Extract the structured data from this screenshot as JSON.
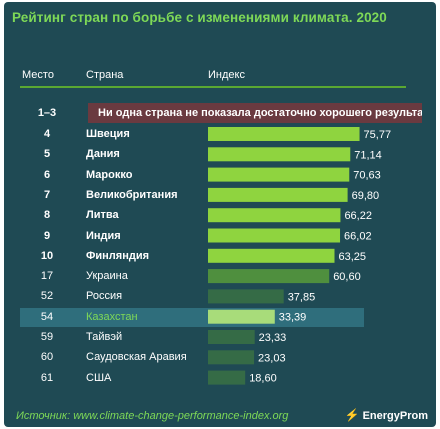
{
  "title": "Рейтинг стран по борьбе с изменениями климата. 2020",
  "headers": {
    "rank": "Место",
    "country": "Страна",
    "index": "Индекс"
  },
  "colors": {
    "background": "#1f4a54",
    "accent": "#7ed957",
    "bar_top": "#8fd43f",
    "bar_mid": "#4f8f3e",
    "bar_low": "#356b46",
    "bar_highlight": "#a8dc7a",
    "notice_bg": "#6a3a40",
    "highlight_row": "#2f6e7c"
  },
  "notice": {
    "rank": "1–3",
    "text": "Ни одна страна не показала  достаточно хорошего  результата"
  },
  "chart_data": {
    "type": "bar",
    "orientation": "horizontal",
    "categories": [
      "Швеция",
      "Дания",
      "Марокко",
      "Великобритания",
      "Литва",
      "Индия",
      "Финляндия",
      "Украина",
      "Россия",
      "Казахстан",
      "Тайвэй",
      "Саудовская Аравия",
      "США"
    ],
    "ranks": [
      "4",
      "5",
      "6",
      "7",
      "8",
      "9",
      "10",
      "17",
      "52",
      "54",
      "59",
      "60",
      "61"
    ],
    "values": [
      75.77,
      71.14,
      70.63,
      69.8,
      66.22,
      66.02,
      63.25,
      60.6,
      37.85,
      33.39,
      23.33,
      23.03,
      18.6
    ],
    "value_labels": [
      "75,77",
      "71,14",
      "70,63",
      "69,80",
      "66,22",
      "66,02",
      "63,25",
      "60,60",
      "37,85",
      "33,39",
      "23,33",
      "23,03",
      "18,60"
    ],
    "bold": [
      true,
      true,
      true,
      true,
      true,
      true,
      true,
      false,
      false,
      false,
      false,
      false,
      false
    ],
    "highlighted": "Казахстан",
    "xlim": [
      0,
      80
    ]
  },
  "source": "Источник: www.climate-change-performance-index.org",
  "logo": "EnergyProm"
}
